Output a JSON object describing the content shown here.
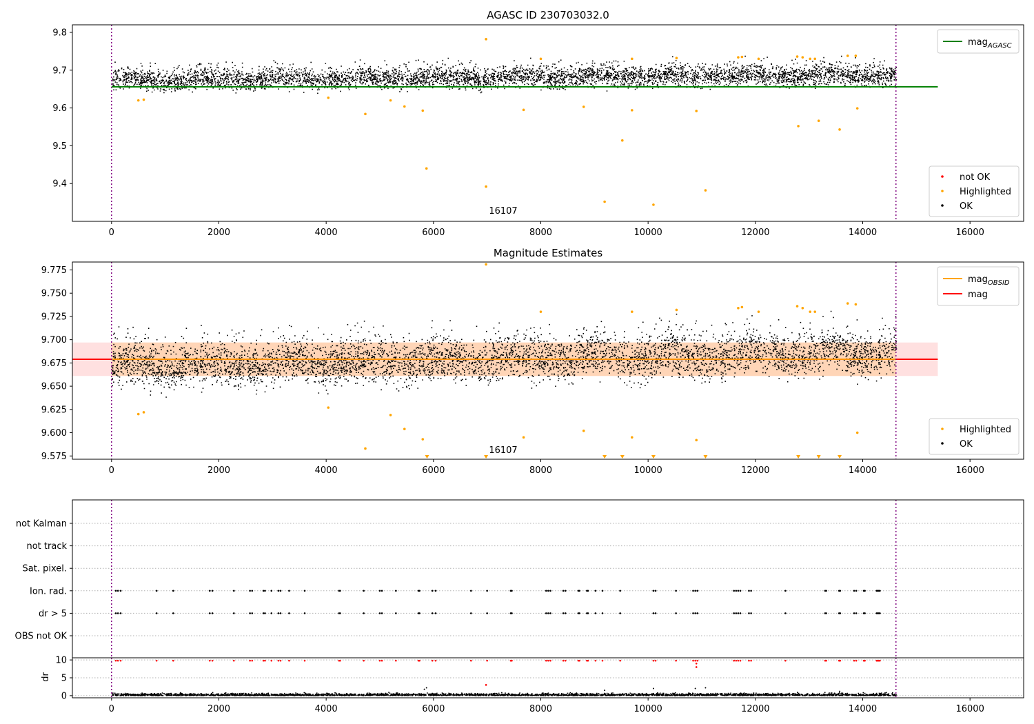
{
  "chart_data": [
    {
      "type": "scatter",
      "title": "AGASC ID 230703032.0",
      "xlim": [
        -730,
        17000
      ],
      "ylim": [
        9.3,
        9.82
      ],
      "x_ticks": [
        0,
        2000,
        4000,
        6000,
        8000,
        10000,
        12000,
        14000,
        16000
      ],
      "x_tick_labels": [
        "0",
        "2000",
        "4000",
        "6000",
        "8000",
        "10000",
        "12000",
        "14000",
        "16000"
      ],
      "y_ticks": [
        9.4,
        9.5,
        9.6,
        9.7,
        9.8
      ],
      "y_tick_labels": [
        "9.4",
        "9.5",
        "9.6",
        "9.7",
        "9.8"
      ],
      "obs_boundaries": [
        0,
        14620
      ],
      "obs_label": {
        "x": 7300,
        "y": 9.32,
        "text": "16107"
      },
      "mag_agasc": 9.656,
      "ok_band": {
        "center": 9.676,
        "trend": 0.014,
        "halfwidth": 0.024,
        "outer": 0.04
      },
      "highlighted": [
        [
          500,
          9.62
        ],
        [
          600,
          9.622
        ],
        [
          4040,
          9.627
        ],
        [
          4730,
          9.584
        ],
        [
          5200,
          9.62
        ],
        [
          5460,
          9.604
        ],
        [
          5800,
          9.593
        ],
        [
          5870,
          9.44
        ],
        [
          6980,
          9.392
        ],
        [
          6980,
          9.782
        ],
        [
          7680,
          9.595
        ],
        [
          8000,
          9.73
        ],
        [
          8800,
          9.603
        ],
        [
          9190,
          9.352
        ],
        [
          9520,
          9.514
        ],
        [
          9700,
          9.594
        ],
        [
          9700,
          9.73
        ],
        [
          10100,
          9.344
        ],
        [
          10530,
          9.732
        ],
        [
          10900,
          9.592
        ],
        [
          11070,
          9.382
        ],
        [
          11680,
          9.734
        ],
        [
          11750,
          9.735
        ],
        [
          12060,
          9.73
        ],
        [
          12780,
          9.736
        ],
        [
          12800,
          9.552
        ],
        [
          12880,
          9.734
        ],
        [
          13020,
          9.73
        ],
        [
          13110,
          9.73
        ],
        [
          13180,
          9.566
        ],
        [
          13570,
          9.543
        ],
        [
          13720,
          9.738
        ],
        [
          13870,
          9.738
        ],
        [
          13900,
          9.599
        ]
      ],
      "legend_lines": [
        {
          "label": "mag",
          "sub": "AGASC",
          "color": "#008000"
        }
      ],
      "legend_markers": [
        {
          "label": "not OK",
          "color": "#ff0000"
        },
        {
          "label": "Highlighted",
          "color": "#ffa500"
        },
        {
          "label": "OK",
          "color": "#000000"
        }
      ]
    },
    {
      "type": "scatter",
      "title": "Magnitude Estimates",
      "xlim": [
        -730,
        17000
      ],
      "ylim": [
        9.5715,
        9.7835
      ],
      "x_ticks": [
        0,
        2000,
        4000,
        6000,
        8000,
        10000,
        12000,
        14000,
        16000
      ],
      "x_tick_labels": [
        "0",
        "2000",
        "4000",
        "6000",
        "8000",
        "10000",
        "12000",
        "14000",
        "16000"
      ],
      "y_ticks": [
        9.575,
        9.6,
        9.625,
        9.65,
        9.675,
        9.7,
        9.725,
        9.75,
        9.775
      ],
      "y_tick_labels": [
        "9.575",
        "9.600",
        "9.625",
        "9.650",
        "9.675",
        "9.700",
        "9.725",
        "9.750",
        "9.775"
      ],
      "obs_boundaries": [
        0,
        14620
      ],
      "obs_label": {
        "x": 7300,
        "y": 9.578,
        "text": "16107"
      },
      "mag": 9.679,
      "mag_band": [
        9.661,
        9.697
      ],
      "ok_band": {
        "center": 9.672,
        "trend": 0.016,
        "halfwidth": 0.02,
        "outer": 0.034
      },
      "highlighted": [
        [
          500,
          9.62
        ],
        [
          600,
          9.622
        ],
        [
          4040,
          9.627
        ],
        [
          4730,
          9.583
        ],
        [
          5200,
          9.619
        ],
        [
          5460,
          9.604
        ],
        [
          5800,
          9.593
        ],
        [
          7680,
          9.595
        ],
        [
          8000,
          9.73
        ],
        [
          8800,
          9.602
        ],
        [
          9700,
          9.595
        ],
        [
          9700,
          9.73
        ],
        [
          10530,
          9.732
        ],
        [
          10900,
          9.592
        ],
        [
          11680,
          9.734
        ],
        [
          11750,
          9.735
        ],
        [
          12060,
          9.73
        ],
        [
          12780,
          9.736
        ],
        [
          12880,
          9.734
        ],
        [
          13020,
          9.73
        ],
        [
          13110,
          9.73
        ],
        [
          13720,
          9.739
        ],
        [
          13870,
          9.738
        ],
        [
          13900,
          9.6
        ],
        [
          6980,
          9.781
        ]
      ],
      "below_range": [
        5880,
        6980,
        9190,
        9520,
        10100,
        11070,
        12800,
        13180,
        13570
      ],
      "legend_lines": [
        {
          "label": "mag",
          "sub": "OBSID",
          "color": "#ffa500"
        },
        {
          "label": "mag",
          "sub": "",
          "color": "#ff0000"
        }
      ],
      "legend_markers": [
        {
          "label": "Highlighted",
          "color": "#ffa500"
        },
        {
          "label": "OK",
          "color": "#000000"
        }
      ]
    },
    {
      "type": "scatter",
      "xlim": [
        -730,
        17000
      ],
      "obs_boundaries": [
        0,
        14620
      ],
      "flag_labels": [
        "OBS not OK",
        "dr > 5",
        "Ion. rad.",
        "Sat. pixel.",
        "not track",
        "not Kalman"
      ],
      "flag_times": [
        80,
        120,
        170,
        840,
        1150,
        1830,
        1880,
        2280,
        2580,
        2620,
        2830,
        2860,
        2980,
        3110,
        3150,
        3310,
        3600,
        4240,
        4260,
        4700,
        5000,
        5040,
        5300,
        5720,
        5740,
        5980,
        6040,
        6700,
        7000,
        7440,
        7460,
        8100,
        8140,
        8180,
        8420,
        8460,
        8700,
        8720,
        8860,
        8880,
        9020,
        9150,
        9480,
        10100,
        10140,
        10520,
        10840,
        10880,
        10920,
        11600,
        11640,
        11680,
        11720,
        11880,
        11920,
        12560,
        13300,
        13320,
        13560,
        13580,
        13840,
        13880,
        14020,
        14040,
        14260,
        14280,
        14300,
        14320
      ],
      "flag_rows": [
        "dr > 5",
        "Ion. rad."
      ]
    },
    {
      "type": "scatter",
      "xlim": [
        -730,
        17000
      ],
      "ylim": [
        -0.6,
        10.6
      ],
      "ylabel": "dr",
      "x_ticks": [
        0,
        2000,
        4000,
        6000,
        8000,
        10000,
        12000,
        14000,
        16000
      ],
      "x_tick_labels": [
        "0",
        "2000",
        "4000",
        "6000",
        "8000",
        "10000",
        "12000",
        "14000",
        "16000"
      ],
      "y_ticks": [
        0,
        5,
        10
      ],
      "y_tick_labels": [
        "0",
        "5",
        "10"
      ],
      "obs_boundaries": [
        0,
        14620
      ],
      "not_ok_value": 9.8,
      "not_ok_extra": [
        [
          10900,
          9.0
        ],
        [
          10900,
          8.0
        ],
        [
          6980,
          3.0
        ]
      ],
      "ok_outliers": [
        [
          5830,
          1.8
        ],
        [
          5870,
          2.2
        ],
        [
          9190,
          1.5
        ],
        [
          10100,
          2.0
        ],
        [
          10880,
          2.0
        ],
        [
          11070,
          2.2
        ],
        [
          13570,
          1.2
        ]
      ]
    }
  ]
}
